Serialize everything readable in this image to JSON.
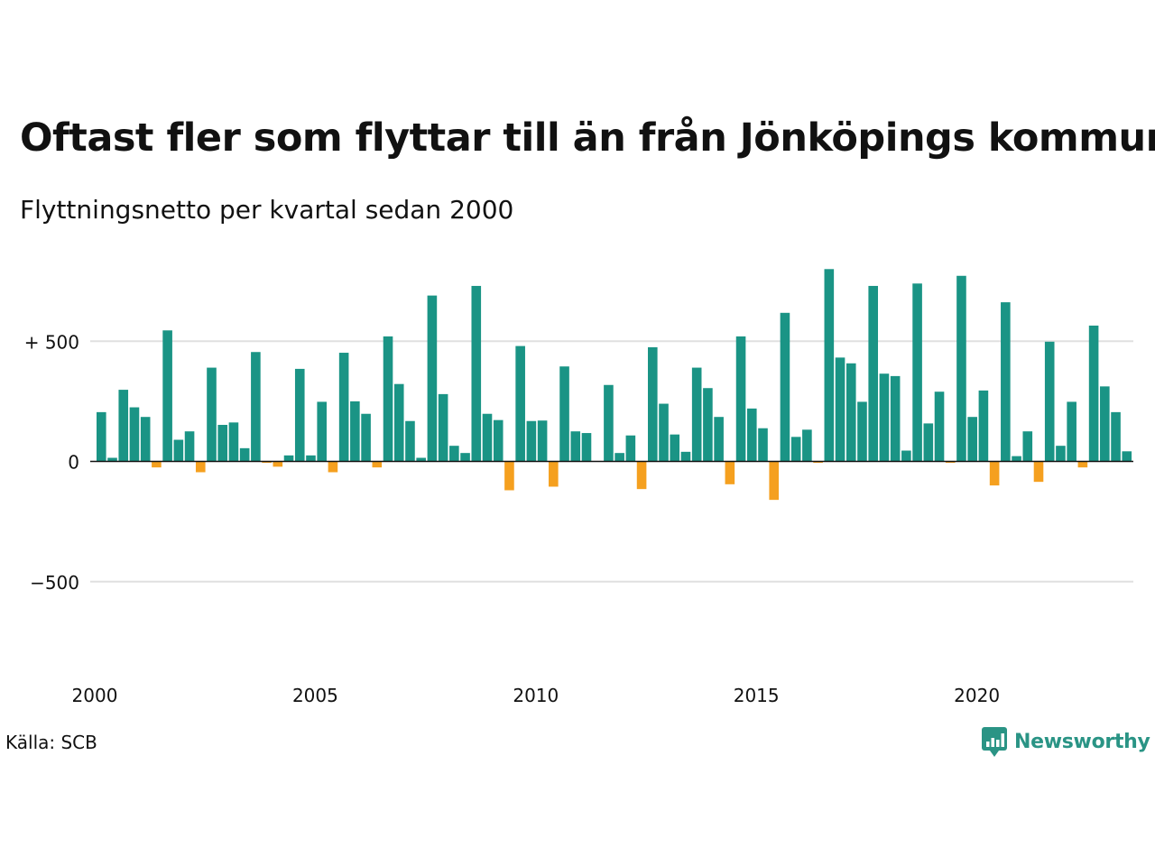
{
  "title": "Oftast fler som flyttar till än från Jönköpings kommun",
  "subtitle": "Flyttningsnetto per kvartal sedan 2000",
  "source": "Källa: SCB",
  "brand": "Newsworthy",
  "colors": {
    "positive": "#1a9485",
    "negative": "#f5a01f",
    "grid": "#e0e0e0",
    "zero": "#111111",
    "brand": "#2a9485"
  },
  "chart_data": {
    "type": "bar",
    "y_ticks": [
      {
        "value": 500,
        "label": "+ 500"
      },
      {
        "value": 0,
        "label": "0"
      },
      {
        "value": -500,
        "label": "−500"
      }
    ],
    "x_ticks": [
      {
        "year": 2000,
        "label": "2000"
      },
      {
        "year": 2005,
        "label": "2005"
      },
      {
        "year": 2010,
        "label": "2010"
      },
      {
        "year": 2015,
        "label": "2015"
      },
      {
        "year": 2020,
        "label": "2020"
      }
    ],
    "ylim": [
      -800,
      820
    ],
    "start_year": 2000,
    "values": [
      205,
      15,
      298,
      225,
      185,
      -25,
      545,
      90,
      125,
      -45,
      390,
      152,
      162,
      55,
      455,
      -5,
      -22,
      25,
      385,
      25,
      248,
      -45,
      452,
      250,
      198,
      -25,
      520,
      322,
      168,
      15,
      690,
      280,
      65,
      35,
      730,
      198,
      172,
      -120,
      480,
      168,
      170,
      -105,
      395,
      125,
      118,
      0,
      318,
      35,
      108,
      -115,
      475,
      240,
      112,
      40,
      390,
      305,
      185,
      -95,
      520,
      220,
      138,
      -160,
      618,
      102,
      132,
      -5,
      800,
      432,
      408,
      248,
      730,
      365,
      355,
      45,
      740,
      158,
      290,
      -5,
      772,
      185,
      295,
      -100,
      662,
      22,
      125,
      -85,
      498,
      65,
      248,
      -25,
      565,
      312,
      205,
      42
    ]
  }
}
